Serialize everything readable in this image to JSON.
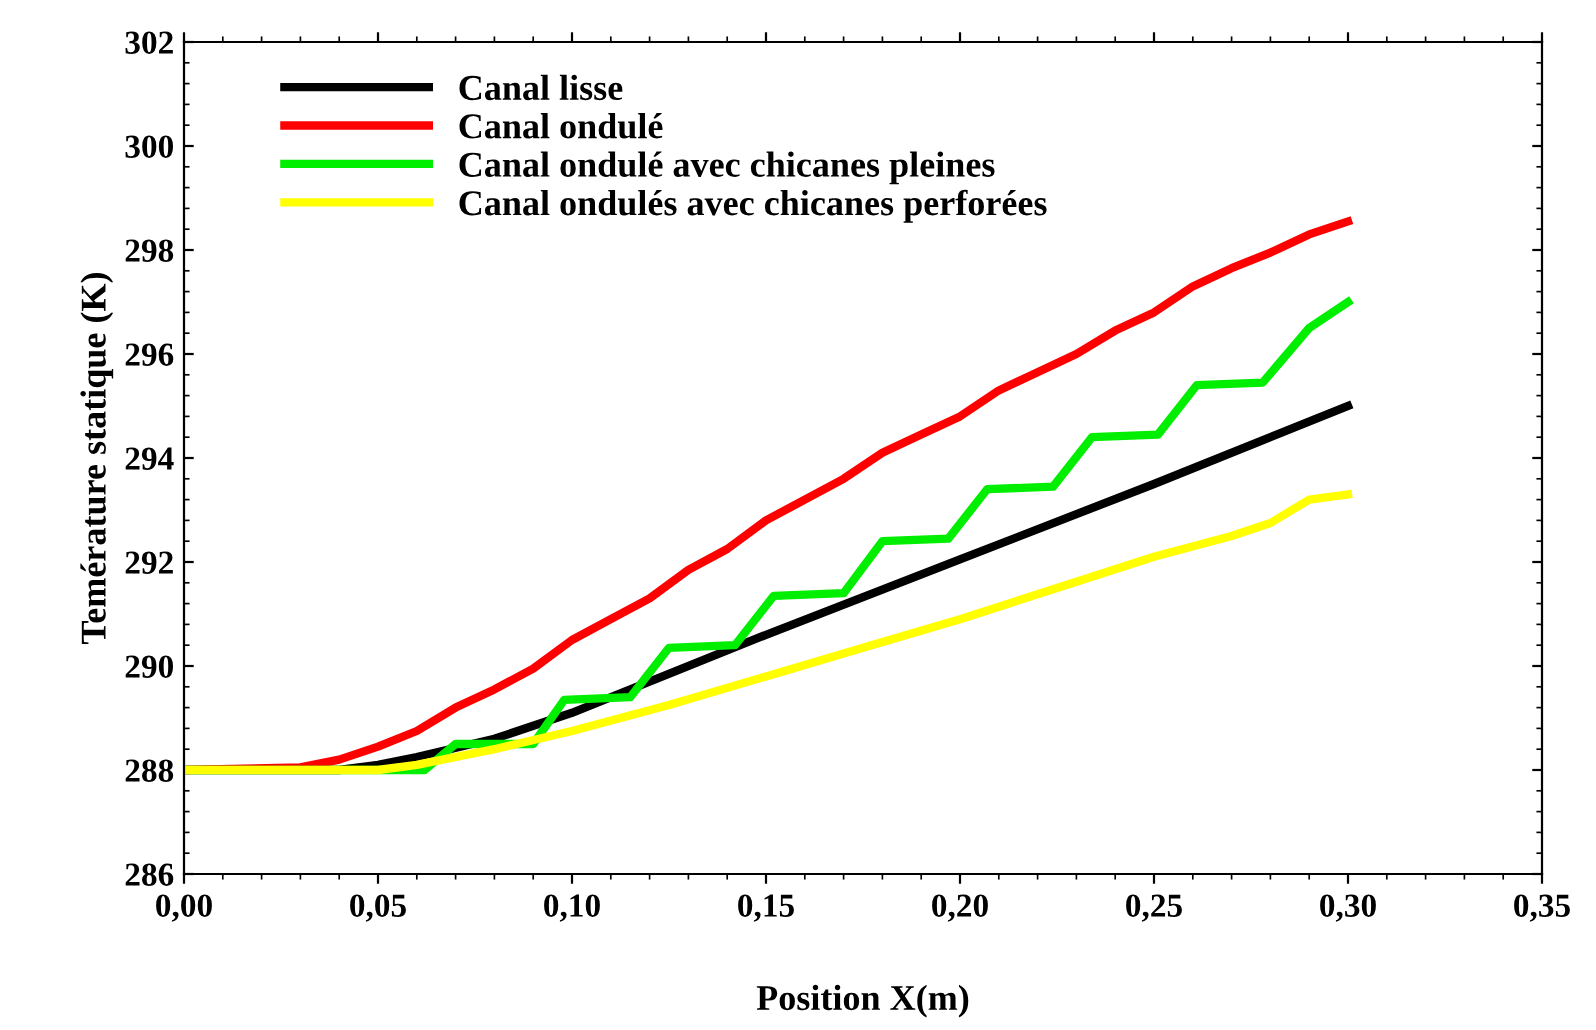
{
  "chart_data": {
    "type": "line",
    "xlabel": "Position X(m)",
    "ylabel": "Temérature statique (K)",
    "xlim": [
      0,
      0.35
    ],
    "ylim": [
      286,
      302
    ],
    "xticks": [
      {
        "value": 0,
        "label": "0,00"
      },
      {
        "value": 0.05,
        "label": "0,05"
      },
      {
        "value": 0.1,
        "label": "0,10"
      },
      {
        "value": 0.15,
        "label": "0,15"
      },
      {
        "value": 0.2,
        "label": "0,20"
      },
      {
        "value": 0.25,
        "label": "0,25"
      },
      {
        "value": 0.3,
        "label": "0,30"
      },
      {
        "value": 0.35,
        "label": "0,35"
      }
    ],
    "yticks": [
      286,
      288,
      290,
      292,
      294,
      296,
      298,
      300,
      302
    ],
    "grid": false,
    "legend": "top left",
    "marker": "none",
    "line_style": "solid",
    "series": [
      {
        "name": "Canal lisse",
        "color": "#000000",
        "x": [
          0,
          0.04,
          0.05,
          0.06,
          0.08,
          0.1,
          0.15,
          0.2,
          0.25,
          0.3
        ],
        "values": [
          288,
          288,
          288.1,
          288.25,
          288.6,
          289.1,
          290.6,
          292.05,
          293.5,
          295.0
        ]
      },
      {
        "name": "Canal ondulé",
        "color": "#ff0000",
        "x": [
          0,
          0.03,
          0.04,
          0.05,
          0.06,
          0.07,
          0.08,
          0.09,
          0.1,
          0.11,
          0.12,
          0.13,
          0.14,
          0.15,
          0.16,
          0.17,
          0.18,
          0.19,
          0.2,
          0.21,
          0.22,
          0.23,
          0.24,
          0.25,
          0.26,
          0.27,
          0.28,
          0.29,
          0.3
        ],
        "values": [
          288,
          288.05,
          288.2,
          288.45,
          288.75,
          289.2,
          289.55,
          289.95,
          290.5,
          290.9,
          291.3,
          291.85,
          292.25,
          292.8,
          293.2,
          293.6,
          294.1,
          294.45,
          294.8,
          295.3,
          295.65,
          296.0,
          296.45,
          296.8,
          297.3,
          297.65,
          297.95,
          298.3,
          298.55
        ]
      },
      {
        "name": "Canal ondulé avec chicanes pleines",
        "color": "#00ee00",
        "x": [
          0,
          0.062,
          0.07,
          0.09,
          0.098,
          0.115,
          0.125,
          0.142,
          0.152,
          0.17,
          0.18,
          0.197,
          0.207,
          0.224,
          0.234,
          0.251,
          0.261,
          0.278,
          0.29,
          0.3
        ],
        "values": [
          288,
          288,
          288.5,
          288.5,
          289.35,
          289.4,
          290.35,
          290.4,
          291.35,
          291.4,
          292.4,
          292.45,
          293.4,
          293.45,
          294.4,
          294.45,
          295.4,
          295.45,
          296.5,
          297.0
        ]
      },
      {
        "name": "Canal ondulés avec chicanes perforées",
        "color": "#ffff00",
        "x": [
          0,
          0.05,
          0.06,
          0.08,
          0.1,
          0.125,
          0.15,
          0.175,
          0.2,
          0.225,
          0.25,
          0.27,
          0.28,
          0.29,
          0.3
        ],
        "values": [
          288,
          288,
          288.1,
          288.4,
          288.75,
          289.25,
          289.8,
          290.35,
          290.9,
          291.5,
          292.1,
          292.5,
          292.75,
          293.2,
          293.3
        ]
      }
    ]
  }
}
